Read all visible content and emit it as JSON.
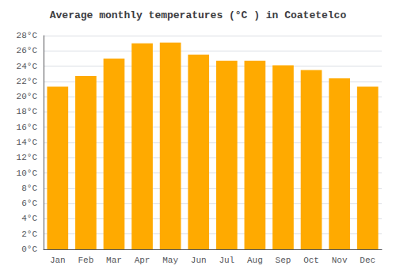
{
  "chart_data": {
    "type": "bar",
    "title": "Average monthly temperatures (°C ) in Coatetelco",
    "categories": [
      "Jan",
      "Feb",
      "Mar",
      "Apr",
      "May",
      "Jun",
      "Jul",
      "Aug",
      "Sep",
      "Oct",
      "Nov",
      "Dec"
    ],
    "values": [
      21.3,
      22.7,
      25.0,
      27.0,
      27.1,
      25.5,
      24.7,
      24.7,
      24.1,
      23.5,
      22.4,
      21.3
    ],
    "color": "#FFAA00",
    "ylim": [
      0,
      28
    ],
    "yticks": [
      {
        "value": 0,
        "label": "0°C"
      },
      {
        "value": 2,
        "label": "2°C"
      },
      {
        "value": 4,
        "label": "4°C"
      },
      {
        "value": 6,
        "label": "6°C"
      },
      {
        "value": 8,
        "label": "8°C"
      },
      {
        "value": 10,
        "label": "10°C"
      },
      {
        "value": 12,
        "label": "12°C"
      },
      {
        "value": 14,
        "label": "14°C"
      },
      {
        "value": 16,
        "label": "16°C"
      },
      {
        "value": 18,
        "label": "18°C"
      },
      {
        "value": 20,
        "label": "20°C"
      },
      {
        "value": 22,
        "label": "22°C"
      },
      {
        "value": 24,
        "label": "24°C"
      },
      {
        "value": 26,
        "label": "26°C"
      },
      {
        "value": 28,
        "label": "28°C"
      }
    ],
    "grid": true
  }
}
